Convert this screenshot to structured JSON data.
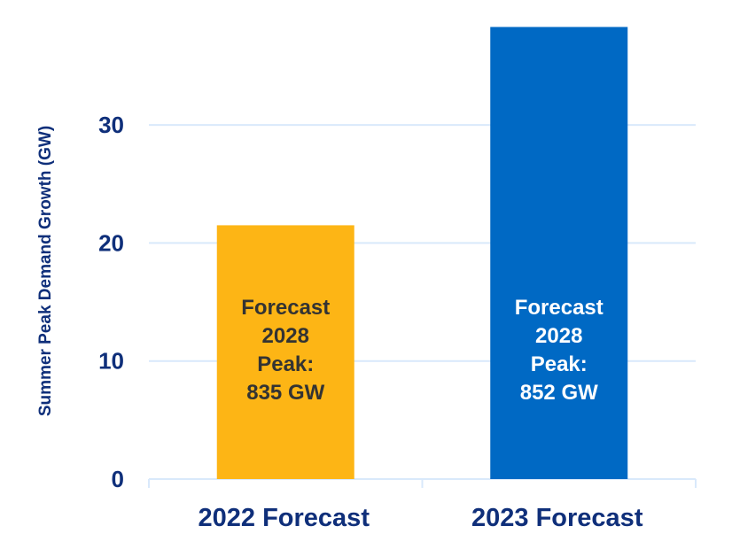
{
  "chart_data": {
    "type": "bar",
    "title": "",
    "xlabel": "",
    "ylabel": "Summer Peak Demand Growth (GW)",
    "categories": [
      "2022 Forecast",
      "2023 Forecast"
    ],
    "values": [
      21.5,
      38.3
    ],
    "ylim": [
      0,
      38.3
    ],
    "yticks": [
      0,
      10,
      20,
      30
    ],
    "ytick_labels": [
      "0",
      "10",
      "20",
      "30"
    ],
    "grid": true,
    "legend": "none",
    "bar_colors": [
      "#fdb515",
      "#0069c4"
    ],
    "bar_annotations": [
      {
        "lines": [
          "Forecast",
          "2028",
          "Peak:",
          "835 GW"
        ],
        "color": "#333333"
      },
      {
        "lines": [
          "Forecast",
          "2028",
          "Peak:",
          "852 GW"
        ],
        "color": "#ffffff"
      }
    ],
    "colors": {
      "axis_text": "#0f2f7a",
      "gridline": "#d9e9fb"
    }
  }
}
